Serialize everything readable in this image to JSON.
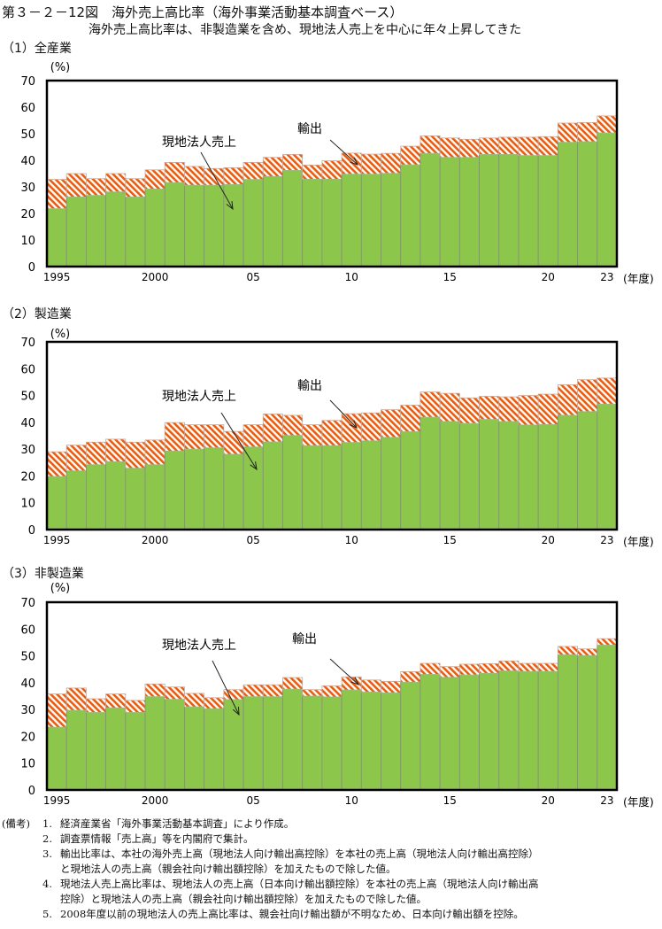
{
  "figure": {
    "title": "第３－２－12図　海外売上高比率（海外事業活動基本調査ベース）",
    "subtitle": "海外売上高比率は、非製造業を含め、現地法人売上を中心に年々上昇してきた"
  },
  "colors": {
    "local_sales": "#8cc64b",
    "exports": "#f05a0a",
    "bar_edge": "#8a8a8a",
    "frame": "#000000"
  },
  "chart_data": [
    {
      "type": "bar",
      "stacked": true,
      "title": "（1）全産業",
      "ylabel": "(%)",
      "xlabel": "(年度)",
      "ylim": [
        0,
        70
      ],
      "yticks": [
        0,
        10,
        20,
        30,
        40,
        50,
        60,
        70
      ],
      "grid": false,
      "categories": [
        1995,
        1996,
        1997,
        1998,
        1999,
        2000,
        2001,
        2002,
        2003,
        2004,
        2005,
        2006,
        2007,
        2008,
        2009,
        2010,
        2011,
        2012,
        2013,
        2014,
        2015,
        2016,
        2017,
        2018,
        2019,
        2020,
        2021,
        2022,
        2023
      ],
      "xtick_labels": [
        "1995",
        "2000",
        "05",
        "10",
        "15",
        "20",
        "23"
      ],
      "series": [
        {
          "name": "現地法人売上",
          "values": [
            21.8,
            26.2,
            26.8,
            28.1,
            26.2,
            29.2,
            31.6,
            30.6,
            30.6,
            30.9,
            32.8,
            33.9,
            36.2,
            32.9,
            32.9,
            34.8,
            34.8,
            35.1,
            38.3,
            42.6,
            41.1,
            41.1,
            42.2,
            42.2,
            41.8,
            41.8,
            46.8,
            47.0,
            50.3
          ]
        },
        {
          "name": "輸出",
          "values": [
            11.0,
            8.8,
            6.3,
            6.9,
            6.9,
            7.2,
            7.6,
            7.1,
            6.3,
            6.3,
            6.4,
            7.2,
            6.0,
            5.3,
            6.9,
            7.9,
            7.5,
            7.5,
            7.0,
            6.6,
            7.3,
            6.8,
            6.2,
            6.5,
            6.9,
            7.1,
            7.2,
            7.2,
            6.4
          ]
        }
      ]
    },
    {
      "type": "bar",
      "stacked": true,
      "title": "（2）製造業",
      "ylabel": "(%)",
      "xlabel": "(年度)",
      "ylim": [
        0,
        70
      ],
      "yticks": [
        0,
        10,
        20,
        30,
        40,
        50,
        60,
        70
      ],
      "grid": false,
      "categories": [
        1995,
        1996,
        1997,
        1998,
        1999,
        2000,
        2001,
        2002,
        2003,
        2004,
        2005,
        2006,
        2007,
        2008,
        2009,
        2010,
        2011,
        2012,
        2013,
        2014,
        2015,
        2016,
        2017,
        2018,
        2019,
        2020,
        2021,
        2022,
        2023
      ],
      "xtick_labels": [
        "1995",
        "2000",
        "05",
        "10",
        "15",
        "20",
        "23"
      ],
      "series": [
        {
          "name": "現地法人売上",
          "values": [
            19.8,
            21.9,
            24.2,
            25.3,
            22.9,
            24.2,
            29.3,
            30.0,
            30.5,
            28.1,
            30.8,
            32.7,
            35.1,
            31.3,
            31.3,
            32.5,
            33.1,
            34.4,
            36.5,
            41.9,
            40.3,
            39.6,
            41.1,
            40.3,
            39.0,
            39.2,
            42.6,
            44.0,
            46.8
          ]
        },
        {
          "name": "輸出",
          "values": [
            9.2,
            9.6,
            8.4,
            8.4,
            9.7,
            9.2,
            10.6,
            9.1,
            8.6,
            8.5,
            8.3,
            10.4,
            7.5,
            7.8,
            9.4,
            10.7,
            10.4,
            10.3,
            9.9,
            9.4,
            10.5,
            9.5,
            8.6,
            9.2,
            11.0,
            11.3,
            11.4,
            11.9,
            9.7
          ]
        }
      ]
    },
    {
      "type": "bar",
      "stacked": true,
      "title": "（3）非製造業",
      "ylabel": "(%)",
      "xlabel": "(年度)",
      "ylim": [
        0,
        70
      ],
      "yticks": [
        0,
        10,
        20,
        30,
        40,
        50,
        60,
        70
      ],
      "grid": false,
      "categories": [
        1995,
        1996,
        1997,
        1998,
        1999,
        2000,
        2001,
        2002,
        2003,
        2004,
        2005,
        2006,
        2007,
        2008,
        2009,
        2010,
        2011,
        2012,
        2013,
        2014,
        2015,
        2016,
        2017,
        2018,
        2019,
        2020,
        2021,
        2022,
        2023
      ],
      "xtick_labels": [
        "1995",
        "2000",
        "05",
        "10",
        "15",
        "20",
        "23"
      ],
      "series": [
        {
          "name": "現地法人売上",
          "values": [
            23.4,
            29.7,
            28.9,
            30.6,
            28.9,
            34.8,
            33.8,
            31.0,
            30.3,
            33.7,
            34.8,
            34.8,
            37.6,
            35.0,
            34.7,
            37.3,
            36.5,
            36.2,
            40.2,
            43.1,
            42.0,
            42.9,
            43.5,
            44.4,
            44.2,
            44.2,
            50.4,
            50.1,
            54.0
          ]
        },
        {
          "name": "輸出",
          "values": [
            12.4,
            8.3,
            5.1,
            5.2,
            4.5,
            4.7,
            4.6,
            5.0,
            4.1,
            3.7,
            4.4,
            4.4,
            4.3,
            2.4,
            4.1,
            4.8,
            4.5,
            4.3,
            3.9,
            4.1,
            4.0,
            4.0,
            3.6,
            3.7,
            3.0,
            3.0,
            3.1,
            2.5,
            2.4
          ]
        }
      ]
    }
  ],
  "notes": {
    "label": "(備考)",
    "items": [
      {
        "num": "1.",
        "lines": [
          "経済産業省「海外事業活動基本調査」により作成。"
        ]
      },
      {
        "num": "2.",
        "lines": [
          "調査票情報「売上高」等を内閣府で集計。"
        ]
      },
      {
        "num": "3.",
        "lines": [
          "輸出比率は、本社の海外売上高（現地法人向け輸出高控除）を本社の売上高（現地法人向け輸出高控除）",
          "と現地法人の売上高（親会社向け輸出額控除）を加えたもので除した値。"
        ]
      },
      {
        "num": "4.",
        "lines": [
          "現地法人売上高比率は、現地法人の売上高（日本向け輸出額控除）を本社の売上高（現地法人向け輸出高",
          "控除）と現地法人の売上高（親会社向け輸出額控除）を加えたもので除した値。"
        ]
      },
      {
        "num": "5.",
        "lines": [
          "2008年度以前の現地法人の売上高比率は、親会社向け輸出額が不明なため、日本向け輸出額を控除。"
        ]
      }
    ]
  }
}
